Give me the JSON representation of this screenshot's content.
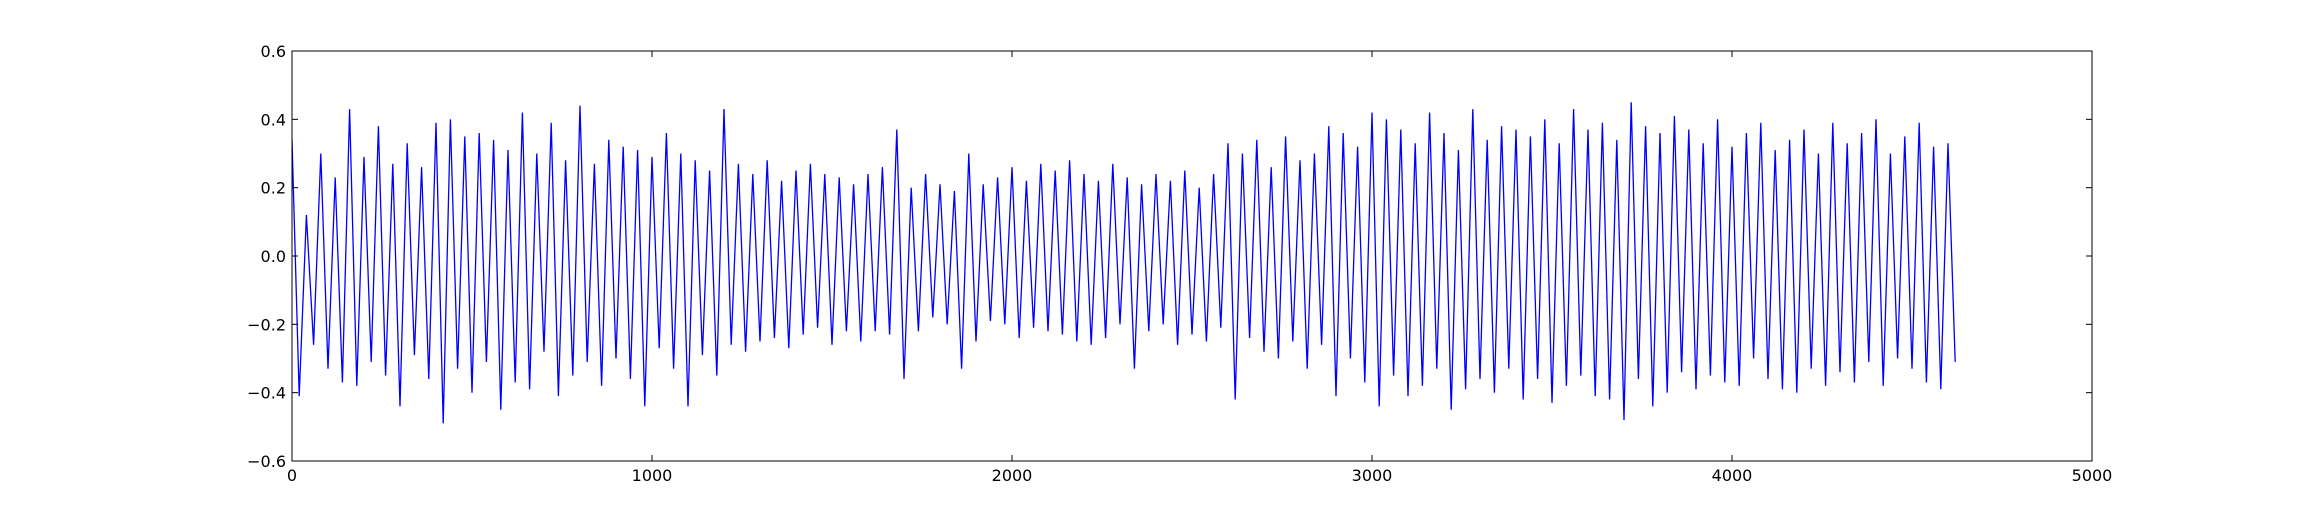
{
  "chart_data": {
    "type": "line",
    "title": "",
    "xlabel": "",
    "ylabel": "",
    "xlim": [
      0,
      5000
    ],
    "ylim": [
      -0.6,
      0.6
    ],
    "grid": false,
    "line_color": "#0000ff",
    "x_ticks": [
      {
        "value": 0,
        "label": "0"
      },
      {
        "value": 1000,
        "label": "1000"
      },
      {
        "value": 2000,
        "label": "2000"
      },
      {
        "value": 3000,
        "label": "3000"
      },
      {
        "value": 4000,
        "label": "4000"
      },
      {
        "value": 5000,
        "label": "5000"
      }
    ],
    "y_ticks": [
      {
        "value": 0.6,
        "label": "0.6"
      },
      {
        "value": 0.4,
        "label": "0.4"
      },
      {
        "value": 0.2,
        "label": "0.2"
      },
      {
        "value": 0.0,
        "label": "0.0"
      },
      {
        "value": -0.2,
        "label": "−0.2"
      },
      {
        "value": -0.4,
        "label": "−0.4"
      },
      {
        "value": -0.6,
        "label": "−0.6"
      }
    ],
    "series": [
      {
        "x_start": 0,
        "x_step": 20,
        "values": [
          0.34,
          -0.41,
          0.12,
          -0.26,
          0.3,
          -0.33,
          0.23,
          -0.37,
          0.43,
          -0.38,
          0.29,
          -0.31,
          0.38,
          -0.35,
          0.27,
          -0.44,
          0.33,
          -0.29,
          0.26,
          -0.36,
          0.39,
          -0.49,
          0.4,
          -0.33,
          0.35,
          -0.4,
          0.36,
          -0.31,
          0.34,
          -0.45,
          0.31,
          -0.37,
          0.42,
          -0.39,
          0.3,
          -0.28,
          0.39,
          -0.41,
          0.28,
          -0.35,
          0.44,
          -0.31,
          0.27,
          -0.38,
          0.34,
          -0.3,
          0.32,
          -0.36,
          0.31,
          -0.44,
          0.29,
          -0.27,
          0.36,
          -0.33,
          0.3,
          -0.44,
          0.28,
          -0.29,
          0.25,
          -0.35,
          0.43,
          -0.26,
          0.27,
          -0.28,
          0.24,
          -0.25,
          0.28,
          -0.24,
          0.22,
          -0.27,
          0.25,
          -0.23,
          0.27,
          -0.21,
          0.24,
          -0.26,
          0.23,
          -0.22,
          0.21,
          -0.25,
          0.24,
          -0.22,
          0.26,
          -0.23,
          0.37,
          -0.36,
          0.2,
          -0.22,
          0.24,
          -0.18,
          0.21,
          -0.2,
          0.19,
          -0.33,
          0.3,
          -0.25,
          0.21,
          -0.19,
          0.23,
          -0.2,
          0.26,
          -0.24,
          0.22,
          -0.21,
          0.27,
          -0.22,
          0.25,
          -0.23,
          0.28,
          -0.25,
          0.24,
          -0.26,
          0.22,
          -0.24,
          0.27,
          -0.2,
          0.23,
          -0.33,
          0.21,
          -0.22,
          0.24,
          -0.2,
          0.22,
          -0.26,
          0.25,
          -0.23,
          0.2,
          -0.25,
          0.24,
          -0.21,
          0.33,
          -0.42,
          0.3,
          -0.24,
          0.34,
          -0.28,
          0.26,
          -0.3,
          0.35,
          -0.25,
          0.28,
          -0.33,
          0.3,
          -0.26,
          0.38,
          -0.41,
          0.36,
          -0.3,
          0.32,
          -0.37,
          0.42,
          -0.44,
          0.4,
          -0.35,
          0.37,
          -0.41,
          0.33,
          -0.38,
          0.42,
          -0.33,
          0.36,
          -0.45,
          0.31,
          -0.39,
          0.43,
          -0.36,
          0.34,
          -0.4,
          0.38,
          -0.33,
          0.37,
          -0.42,
          0.35,
          -0.36,
          0.4,
          -0.43,
          0.33,
          -0.38,
          0.43,
          -0.35,
          0.37,
          -0.41,
          0.39,
          -0.42,
          0.34,
          -0.48,
          0.45,
          -0.36,
          0.38,
          -0.44,
          0.36,
          -0.4,
          0.41,
          -0.34,
          0.37,
          -0.39,
          0.33,
          -0.35,
          0.4,
          -0.37,
          0.32,
          -0.38,
          0.36,
          -0.3,
          0.39,
          -0.36,
          0.31,
          -0.39,
          0.34,
          -0.4,
          0.37,
          -0.33,
          0.3,
          -0.38,
          0.39,
          -0.34,
          0.33,
          -0.37,
          0.36,
          -0.31,
          0.4,
          -0.38,
          0.3,
          -0.3,
          0.35,
          -0.33,
          0.39,
          -0.37,
          0.32,
          -0.39,
          0.33,
          -0.31
        ]
      }
    ]
  }
}
